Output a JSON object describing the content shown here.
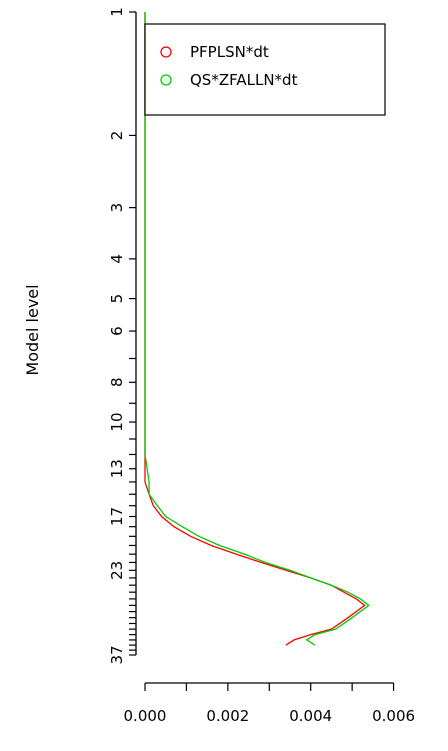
{
  "chart_data": {
    "type": "line",
    "title": "",
    "xlabel": "",
    "ylabel": "Model level",
    "xlim": [
      0,
      0.007
    ],
    "ylim": [
      1,
      37
    ],
    "y_scale": "log",
    "y_inverted": true,
    "x_ticks": [
      0.0,
      0.002,
      0.004,
      0.006
    ],
    "x_tick_labels": [
      "0.000",
      "0.002",
      "0.004",
      "0.006"
    ],
    "y_labeled_ticks": [
      1,
      2,
      3,
      4,
      5,
      6,
      8,
      10,
      13,
      17,
      23,
      37
    ],
    "y_all_ticks": [
      1,
      2,
      3,
      4,
      5,
      6,
      7,
      8,
      9,
      10,
      11,
      12,
      13,
      14,
      15,
      16,
      17,
      18,
      19,
      20,
      21,
      22,
      23,
      24,
      25,
      26,
      27,
      28,
      29,
      30,
      31,
      32,
      33,
      34,
      35,
      36,
      37
    ],
    "grid": false,
    "legend_position": "top-right",
    "series": [
      {
        "name": "PFPLSN*dt",
        "color": "#ff0000",
        "points": [
          [
            0.0,
            1
          ],
          [
            0.0,
            5
          ],
          [
            0.0,
            10
          ],
          [
            0.0,
            13
          ],
          [
            0.0,
            14
          ],
          [
            0.0001,
            15
          ],
          [
            0.0002,
            16
          ],
          [
            0.0004,
            17
          ],
          [
            0.0007,
            18
          ],
          [
            0.0011,
            19
          ],
          [
            0.0016,
            20
          ],
          [
            0.0022,
            21
          ],
          [
            0.0028,
            22
          ],
          [
            0.0034,
            23
          ],
          [
            0.004,
            24
          ],
          [
            0.0045,
            25
          ],
          [
            0.0048,
            26
          ],
          [
            0.0051,
            27
          ],
          [
            0.0053,
            28
          ],
          [
            0.0049,
            30
          ],
          [
            0.0045,
            32
          ],
          [
            0.004,
            33
          ],
          [
            0.0036,
            34
          ],
          [
            0.0034,
            35
          ]
        ]
      },
      {
        "name": "QS*ZFALLN*dt",
        "color": "#00cc00",
        "points": [
          [
            0.0,
            1
          ],
          [
            0.0,
            5
          ],
          [
            0.0,
            10
          ],
          [
            0.0,
            12
          ],
          [
            0.0001,
            14
          ],
          [
            0.0001,
            15
          ],
          [
            0.0003,
            16
          ],
          [
            0.0005,
            17
          ],
          [
            0.0009,
            18
          ],
          [
            0.0013,
            19
          ],
          [
            0.0018,
            20
          ],
          [
            0.0024,
            21
          ],
          [
            0.0029,
            22
          ],
          [
            0.0035,
            23
          ],
          [
            0.004,
            24
          ],
          [
            0.0045,
            25
          ],
          [
            0.0049,
            26
          ],
          [
            0.0052,
            27
          ],
          [
            0.0054,
            28
          ],
          [
            0.005,
            30
          ],
          [
            0.0046,
            32
          ],
          [
            0.0041,
            33
          ],
          [
            0.0039,
            34
          ],
          [
            0.0041,
            35
          ]
        ]
      }
    ]
  }
}
